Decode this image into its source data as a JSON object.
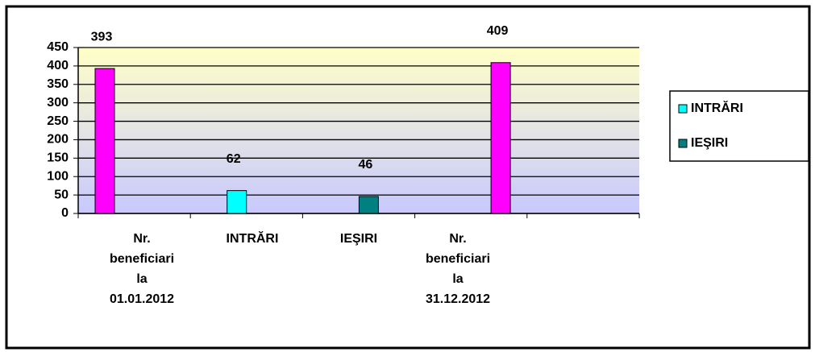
{
  "chart_data": {
    "type": "bar",
    "categories": [
      "Nr. beneficiari la 01.01.2012",
      "INTRĂRI",
      "IEŞIRI",
      "Nr. beneficiari la 31.12.2012"
    ],
    "values": [
      393,
      62,
      46,
      409
    ],
    "colors": [
      "#ff00ff",
      "#00ffff",
      "#008080",
      "#ff00ff"
    ],
    "legend": [
      {
        "name": "INTRĂRI",
        "color": "#00ffff"
      },
      {
        "name": "IEŞIRI",
        "color": "#008080"
      }
    ],
    "ylim": [
      0,
      450
    ],
    "yticks": [
      0,
      50,
      100,
      150,
      200,
      250,
      300,
      350,
      400,
      450
    ],
    "grid": true
  }
}
